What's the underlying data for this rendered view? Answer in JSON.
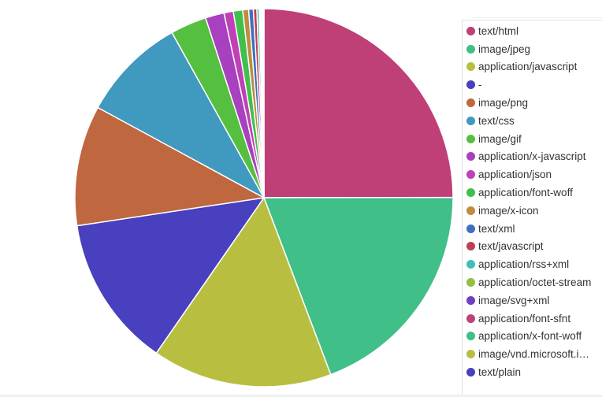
{
  "chart_data": {
    "type": "pie",
    "title": "",
    "legend_position": "right",
    "slices": [
      {
        "label": "text/html",
        "value": 25.0,
        "color": "#bf3f77"
      },
      {
        "label": "image/jpeg",
        "value": 19.3,
        "color": "#40bf88"
      },
      {
        "label": "application/javascript",
        "value": 15.4,
        "color": "#b8bf40"
      },
      {
        "label": "-",
        "value": 13.0,
        "color": "#4840bf"
      },
      {
        "label": "image/png",
        "value": 10.3,
        "color": "#bf673f"
      },
      {
        "label": "text/css",
        "value": 9.0,
        "color": "#4099bf"
      },
      {
        "label": "image/gif",
        "value": 3.1,
        "color": "#55bf40"
      },
      {
        "label": "application/x-javascript",
        "value": 1.6,
        "color": "#a840bf"
      },
      {
        "label": "application/json",
        "value": 0.8,
        "color": "#bf40b7"
      },
      {
        "label": "application/font-woff",
        "value": 0.8,
        "color": "#40bf4c"
      },
      {
        "label": "image/x-icon",
        "value": 0.5,
        "color": "#bf8c40"
      },
      {
        "label": "text/xml",
        "value": 0.4,
        "color": "#406fbf"
      },
      {
        "label": "text/javascript",
        "value": 0.3,
        "color": "#bf404f"
      },
      {
        "label": "application/rss+xml",
        "value": 0.2,
        "color": "#40bfb3"
      },
      {
        "label": "application/octet-stream",
        "value": 0.1,
        "color": "#92bf40"
      },
      {
        "label": "image/svg+xml",
        "value": 0.1,
        "color": "#6f40bf"
      },
      {
        "label": "application/font-sfnt",
        "value": 0.05,
        "color": "#bf3f77"
      },
      {
        "label": "application/x-font-woff",
        "value": 0.05,
        "color": "#40bf88"
      },
      {
        "label": "image/vnd.microsoft.i…",
        "value": 0.05,
        "color": "#b8bf40"
      },
      {
        "label": "text/plain",
        "value": 0.05,
        "color": "#4840bf"
      }
    ]
  }
}
